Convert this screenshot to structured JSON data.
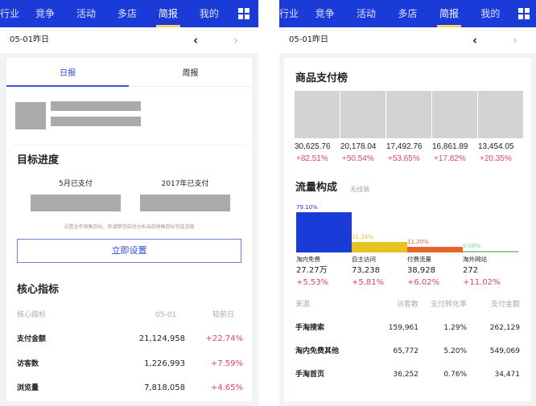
{
  "nav": {
    "items": [
      "行业",
      "竞争",
      "活动",
      "多店",
      "简报",
      "我的"
    ],
    "active": "简报",
    "grid_icon": "grid-icon"
  },
  "left": {
    "date": "05-01昨日",
    "tabs": [
      "日报",
      "周报"
    ],
    "goal": {
      "title": "目标进度",
      "month_label": "5月已支付",
      "year_label": "2017年已支付",
      "hint": "设置全年销售目标，参谋帮您自动分析当前销售目标完成进度",
      "button": "立即设置"
    },
    "core": {
      "title": "核心指标",
      "headers": [
        "核心指标",
        "05-01",
        "较前日"
      ],
      "rows": [
        {
          "name": "支付金额",
          "value": "21,124,958",
          "change": "+22.74%"
        },
        {
          "name": "访客数",
          "value": "1,226,993",
          "change": "+7.59%"
        },
        {
          "name": "浏览量",
          "value": "7,818,058",
          "change": "+4.65%"
        }
      ]
    }
  },
  "right": {
    "date": "05-01昨日",
    "ranking": {
      "title": "商品支付榜",
      "items": [
        {
          "value": "30,625.76",
          "change": "+82.51%"
        },
        {
          "value": "20,178.04",
          "change": "+50.54%"
        },
        {
          "value": "17,492.76",
          "change": "+53.65%"
        },
        {
          "value": "16,861.89",
          "change": "+17.82%"
        },
        {
          "value": "13,454.05",
          "change": "+20.35%"
        }
      ]
    },
    "traffic": {
      "title": "流量构成",
      "subtitle": "无线端",
      "segments": [
        {
          "pct": "79.10%",
          "share": 79.1,
          "color": "#1b3bd8",
          "label": "淘内免费",
          "value": "27.27万",
          "change": "+5.53%"
        },
        {
          "pct": "21.24%",
          "share": 21.24,
          "color": "#e8c21e",
          "label": "自主访问",
          "value": "73,238",
          "change": "+5.81%"
        },
        {
          "pct": "11.20%",
          "share": 11.2,
          "color": "#e8652a",
          "label": "付费流量",
          "value": "38,928",
          "change": "+6.02%"
        },
        {
          "pct": "0.08%",
          "share": 0.08,
          "color": "#8fd38f",
          "label": "淘外网站",
          "value": "272",
          "change": "+11.02%"
        }
      ],
      "headers": [
        "来源",
        "访客数",
        "支付转化率",
        "支付金额"
      ],
      "rows": [
        [
          "手淘搜索",
          "159,961",
          "1.29%",
          "262,129"
        ],
        [
          "淘内免费其他",
          "65,772",
          "5.20%",
          "549,069"
        ],
        [
          "手淘首页",
          "36,252",
          "0.76%",
          "34,471"
        ]
      ]
    }
  }
}
